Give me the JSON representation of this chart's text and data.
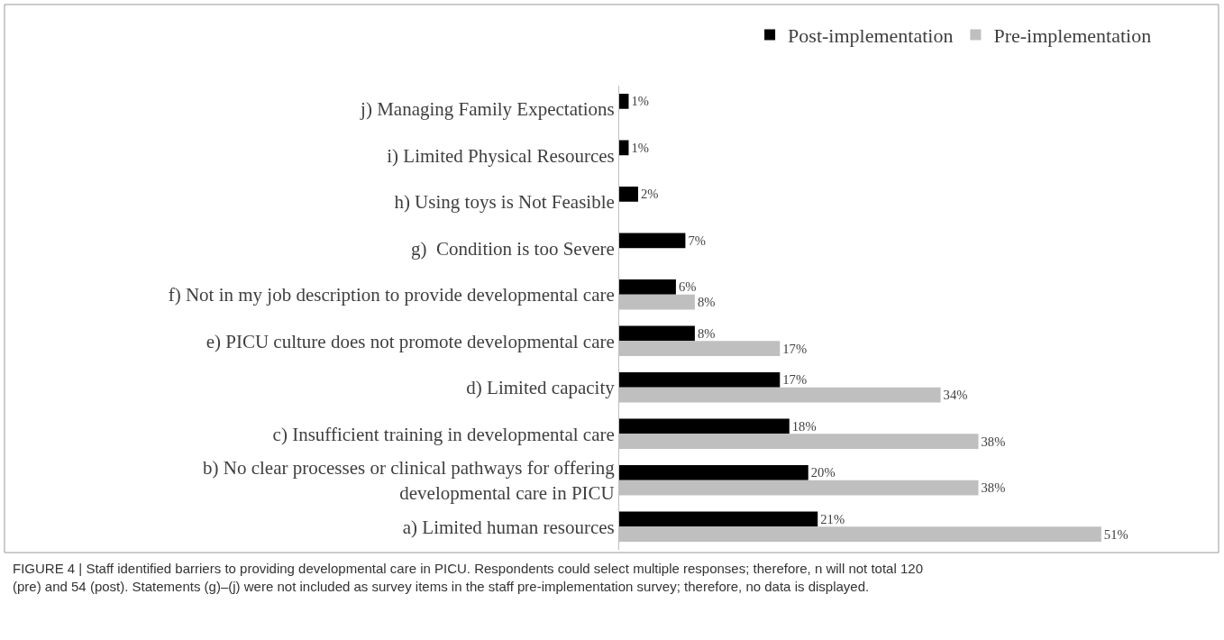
{
  "chart_data": {
    "type": "bar",
    "orientation": "horizontal",
    "legend": "top",
    "categories": [
      "j) Managing Family Expectations",
      "i) Limited Physical Resources",
      "h) Using toys is Not Feasible",
      "g)  Condition is too Severe",
      "f) Not in my job description to provide developmental care",
      "e) PICU culture does not promote developmental care",
      "d) Limited capacity",
      "c) Insufficient training in developmental care",
      "b) No clear processes or clinical pathways for offering\ndevelopmental care in PICU",
      "a) Limited human resources"
    ],
    "series": [
      {
        "name": "Post-implementation",
        "color": "#000000",
        "values": [
          1,
          1,
          2,
          7,
          6,
          8,
          17,
          18,
          20,
          21
        ],
        "value_labels": [
          "1%",
          "1%",
          "2%",
          "7%",
          "6%",
          "8%",
          "17%",
          "18%",
          "20%",
          "21%"
        ]
      },
      {
        "name": "Pre-implementation",
        "color": "#bfbfbf",
        "values": [
          null,
          null,
          null,
          null,
          8,
          17,
          34,
          38,
          38,
          51
        ],
        "value_labels": [
          null,
          null,
          null,
          null,
          "8%",
          "17%",
          "34%",
          "38%",
          "38%",
          "51%"
        ]
      }
    ],
    "annotations": [
      "FIGURE 4 | Staff identified barriers to providing developmental care in PICU. Respondents could select multiple responses; therefore, n will not total 120 (pre) and 54 (post). Statements (g)–(j) were not included as survey items in the staff pre-implementation survey; therefore, no data is displayed."
    ]
  }
}
